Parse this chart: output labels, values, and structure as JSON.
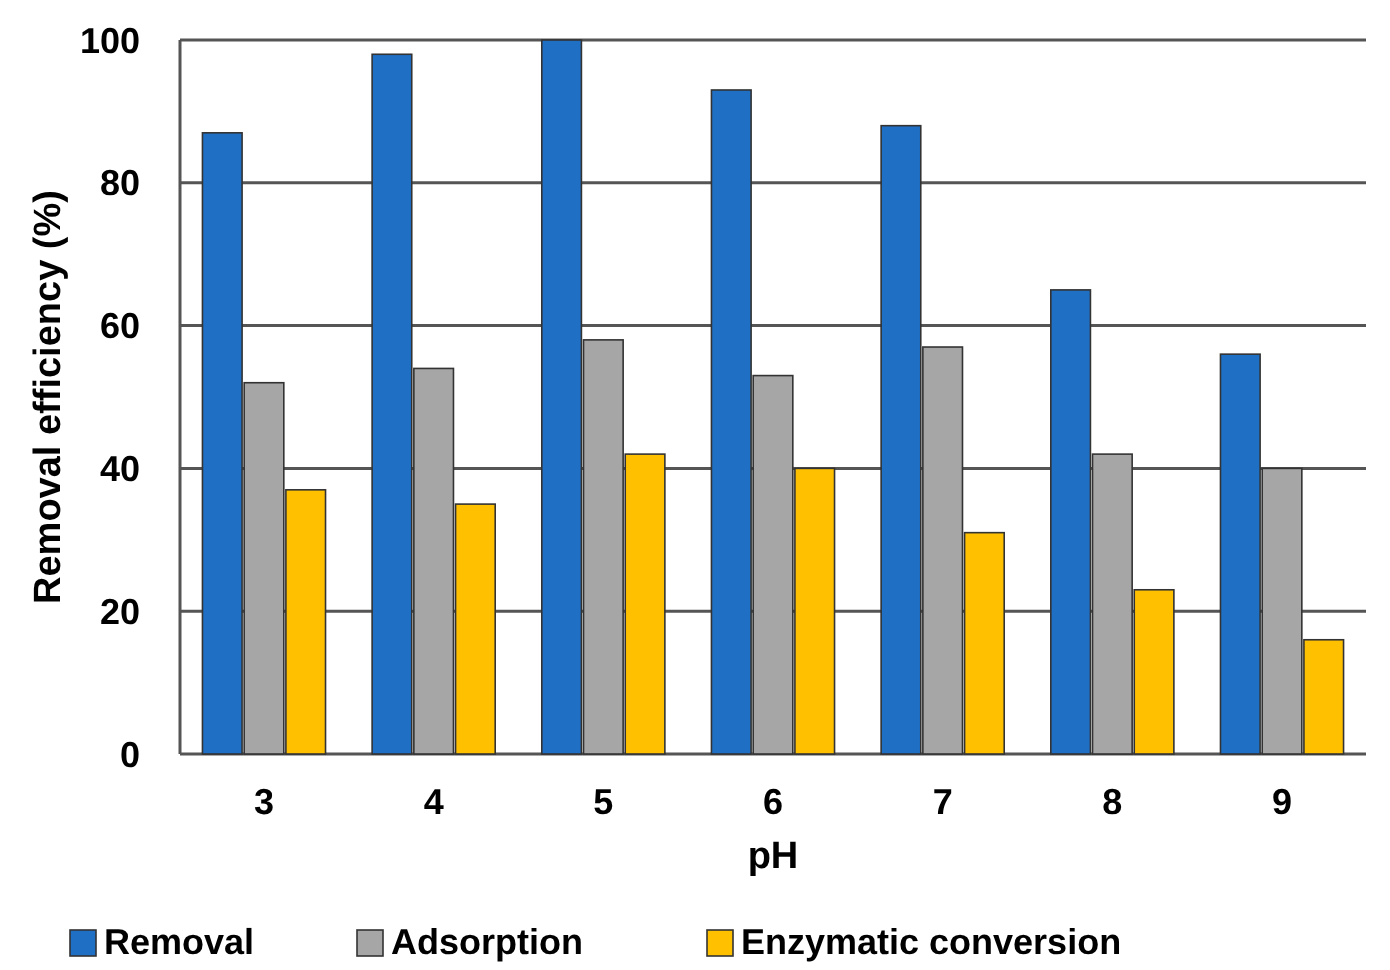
{
  "chart_data": {
    "type": "bar",
    "xlabel": "pH",
    "ylabel": "Removal efficiency (%)",
    "categories": [
      "3",
      "4",
      "5",
      "6",
      "7",
      "8",
      "9"
    ],
    "series": [
      {
        "name": "Removal",
        "color": "#1f6fc5",
        "values": [
          87,
          98,
          100,
          93,
          88,
          65,
          56
        ]
      },
      {
        "name": "Adsorption",
        "color": "#a6a6a6",
        "values": [
          52,
          54,
          58,
          53,
          57,
          42,
          40
        ]
      },
      {
        "name": "Enzymatic conversion",
        "color": "#ffc000",
        "values": [
          37,
          35,
          42,
          40,
          31,
          23,
          16
        ]
      }
    ],
    "ylim": [
      0,
      100
    ],
    "yticks": [
      0,
      20,
      40,
      60,
      80,
      100
    ],
    "grid": "y",
    "legend": "bottom"
  }
}
